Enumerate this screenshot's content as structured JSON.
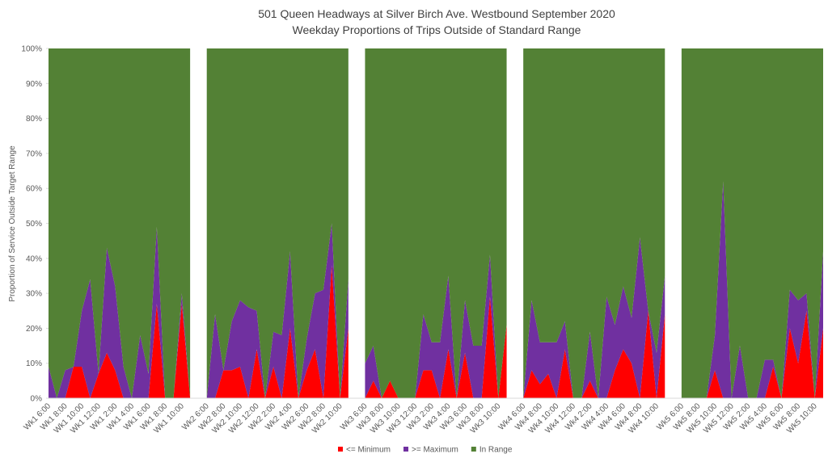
{
  "chart_data": {
    "type": "stacked_area",
    "title": "501 Queen Headways at Silver Birch Ave. Westbound September 2020",
    "subtitle": "Weekday Proportions of Trips Outside of Standard Range",
    "y_label": "Proportion of Service Outside Target Range",
    "categories": [
      "Wk1 6:00",
      null,
      "Wk1 8:00",
      null,
      "Wk1 10:00",
      null,
      "Wk1 12:00",
      null,
      "Wk1 2:00",
      null,
      "Wk1 4:00",
      null,
      "Wk1 6:00",
      null,
      "Wk1 8:00",
      null,
      "Wk1 10:00",
      null,
      null,
      "Wk2 6:00",
      null,
      "Wk2 8:00",
      null,
      "Wk2 10:00",
      null,
      "Wk2 12:00",
      null,
      "Wk2 2:00",
      null,
      "Wk2 4:00",
      null,
      "Wk2 6:00",
      null,
      "Wk2 8:00",
      null,
      "Wk2 10:00",
      null,
      null,
      "Wk3 6:00",
      null,
      "Wk3 8:00",
      null,
      "Wk3 10:00",
      null,
      "Wk3 12:00",
      null,
      "Wk3 2:00",
      null,
      "Wk3 4:00",
      null,
      "Wk3 6:00",
      null,
      "Wk3 8:00",
      null,
      "Wk3 10:00",
      null,
      null,
      "Wk4 6:00",
      null,
      "Wk4 8:00",
      null,
      "Wk4 10:00",
      null,
      "Wk4 12:00",
      null,
      "Wk4 2:00",
      null,
      "Wk4 4:00",
      null,
      "Wk4 6:00",
      null,
      "Wk4 8:00",
      null,
      "Wk4 10:00",
      null,
      null,
      "Wk5 6:00",
      null,
      "Wk5 8:00",
      null,
      "Wk5 10:00",
      null,
      "Wk5 12:00",
      null,
      "Wk5 2:00",
      null,
      "Wk5 4:00",
      null,
      "Wk5 6:00",
      null,
      "Wk5 8:00",
      null,
      "Wk5 10:00",
      null
    ],
    "series": [
      {
        "name": "<= Minimum",
        "color": "#ff0000",
        "values": [
          0,
          0,
          0,
          9,
          9,
          0,
          7,
          13,
          8,
          0,
          0,
          0,
          0,
          27,
          0,
          0,
          27,
          0,
          null,
          0,
          0,
          8,
          8,
          9,
          0,
          14,
          0,
          9,
          0,
          20,
          0,
          8,
          14,
          0,
          38,
          0,
          20,
          null,
          0,
          5,
          0,
          5,
          0,
          0,
          0,
          8,
          8,
          0,
          14,
          0,
          13,
          0,
          0,
          29,
          0,
          21,
          null,
          0,
          8,
          4,
          7,
          0,
          14,
          0,
          0,
          5,
          0,
          0,
          8,
          14,
          10,
          0,
          25,
          0,
          24,
          null,
          0,
          0,
          0,
          0,
          8,
          0,
          0,
          0,
          0,
          0,
          0,
          9,
          0,
          20,
          10,
          25,
          0,
          20
        ]
      },
      {
        "name": ">= Maximum",
        "color": "#7030a0",
        "values": [
          9,
          0,
          8,
          0,
          16,
          34,
          0,
          30,
          24,
          9,
          0,
          18,
          7,
          22,
          0,
          0,
          3,
          0,
          null,
          0,
          24,
          0,
          14,
          19,
          26,
          11,
          0,
          10,
          18,
          22,
          0,
          9,
          16,
          31,
          12,
          0,
          14,
          null,
          10,
          10,
          0,
          0,
          0,
          0,
          0,
          16,
          8,
          16,
          21,
          0,
          15,
          15,
          15,
          12,
          0,
          0,
          null,
          0,
          20,
          12,
          9,
          16,
          8,
          0,
          0,
          14,
          0,
          29,
          13,
          18,
          13,
          46,
          0,
          13,
          11,
          null,
          0,
          0,
          0,
          0,
          10,
          62,
          0,
          15,
          0,
          0,
          11,
          2,
          0,
          11,
          18,
          5,
          0,
          22
        ]
      },
      {
        "name": "In Range",
        "color": "#538135",
        "values": [
          91,
          100,
          92,
          91,
          75,
          66,
          93,
          57,
          68,
          91,
          100,
          82,
          93,
          51,
          100,
          100,
          70,
          100,
          null,
          100,
          76,
          92,
          78,
          72,
          74,
          75,
          100,
          81,
          82,
          58,
          100,
          83,
          70,
          69,
          50,
          100,
          66,
          null,
          90,
          85,
          100,
          95,
          100,
          100,
          100,
          76,
          84,
          84,
          65,
          100,
          72,
          85,
          85,
          59,
          100,
          79,
          null,
          100,
          72,
          84,
          84,
          84,
          78,
          100,
          100,
          81,
          100,
          71,
          79,
          68,
          77,
          54,
          75,
          87,
          65,
          null,
          100,
          100,
          100,
          100,
          82,
          38,
          100,
          85,
          100,
          100,
          89,
          89,
          100,
          69,
          72,
          70,
          100,
          58
        ]
      }
    ],
    "ylim": [
      0,
      100
    ],
    "yticks": [
      {
        "value": 0,
        "label": "0%"
      },
      {
        "value": 10,
        "label": "10%"
      },
      {
        "value": 20,
        "label": "20%"
      },
      {
        "value": 30,
        "label": "30%"
      },
      {
        "value": 40,
        "label": "40%"
      },
      {
        "value": 50,
        "label": "50%"
      },
      {
        "value": 60,
        "label": "60%"
      },
      {
        "value": 70,
        "label": "70%"
      },
      {
        "value": 80,
        "label": "80%"
      },
      {
        "value": 90,
        "label": "90%"
      },
      {
        "value": 100,
        "label": "100%"
      }
    ],
    "legend": "bottom"
  }
}
